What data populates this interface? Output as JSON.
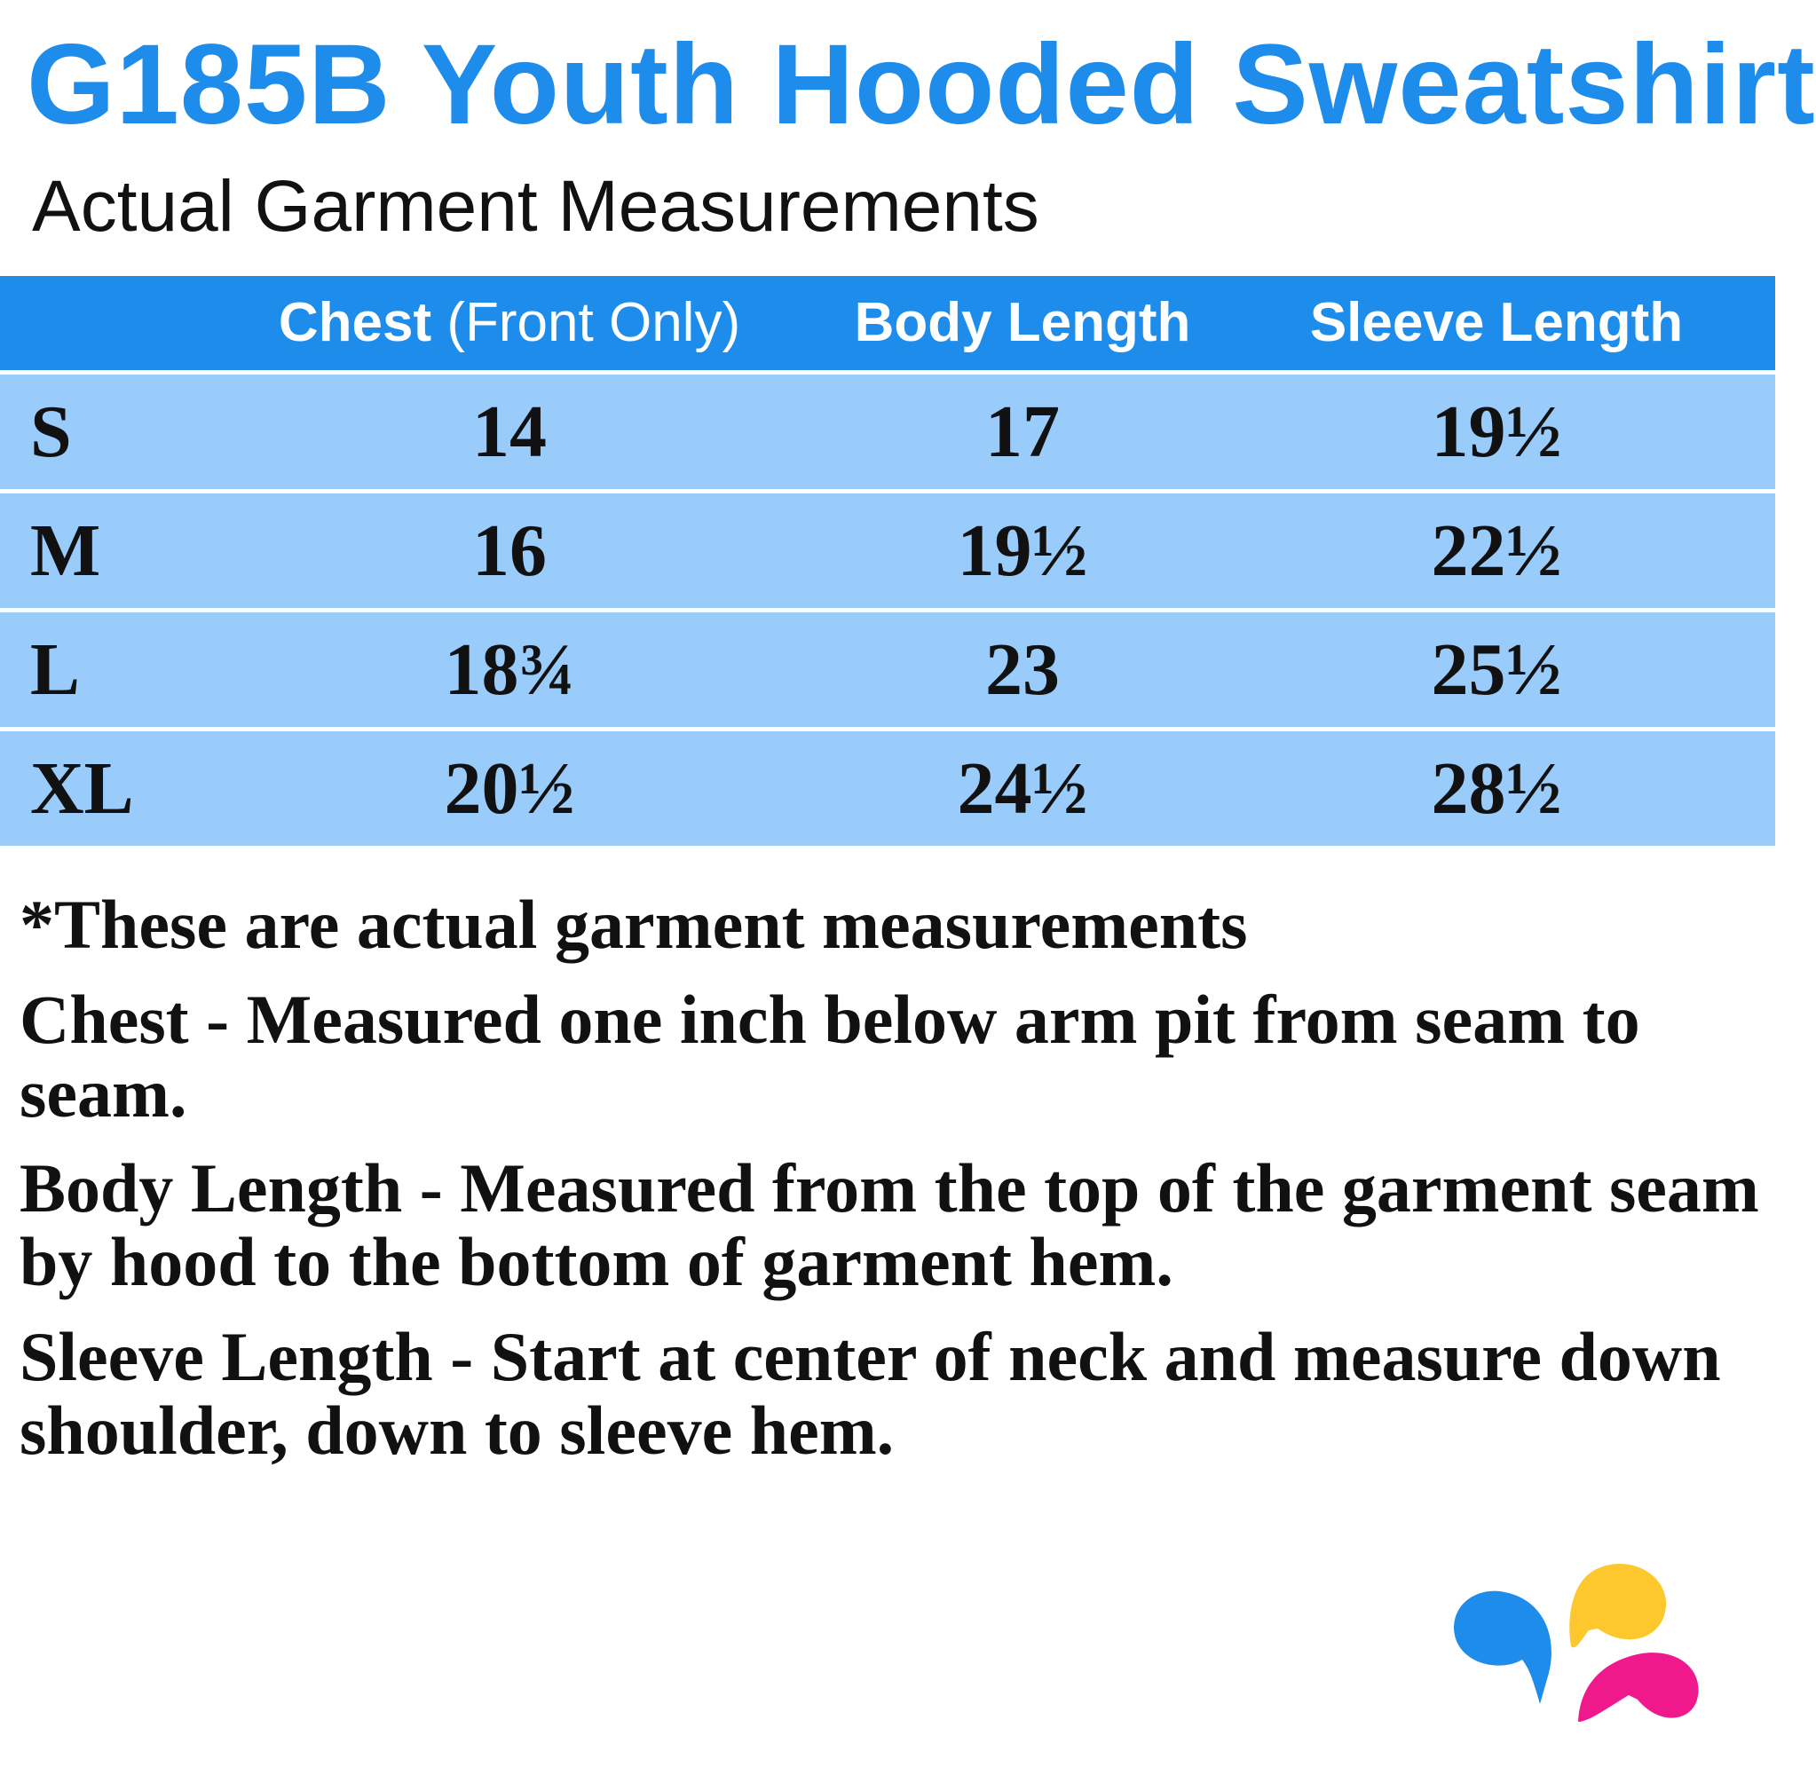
{
  "title": "G185B Youth Hooded Sweatshirt",
  "subtitle": "Actual Garment Measurements",
  "table": {
    "headers": [
      {
        "bold": "Chest",
        "rest": " (Front Only)"
      },
      {
        "bold": "Body Length",
        "rest": ""
      },
      {
        "bold": "Sleeve Length",
        "rest": ""
      }
    ],
    "rows": [
      {
        "size": "S",
        "chest": "14",
        "body": "17",
        "sleeve": "19½"
      },
      {
        "size": "M",
        "chest": "16",
        "body": "19½",
        "sleeve": "22½"
      },
      {
        "size": "L",
        "chest": "18¾",
        "body": "23",
        "sleeve": "25½"
      },
      {
        "size": "XL",
        "chest": "20½",
        "body": "24½",
        "sleeve": "28½"
      }
    ]
  },
  "notes": [
    "*These are actual garment measurements",
    "Chest - Measured one inch below arm pit from seam to seam.",
    "Body Length - Measured from the top of the garment seam by hood to the bottom of garment hem.",
    "Sleeve Length - Start at center of neck and measure down shoulder, down to sleeve hem."
  ],
  "colors": {
    "accent": "#1e8ceb",
    "row_bg": "#99cbfb",
    "logo": [
      "#1e8ceb",
      "#fcc82e",
      "#f0198c"
    ]
  },
  "logo": {
    "icon": "three-drops-logo"
  }
}
